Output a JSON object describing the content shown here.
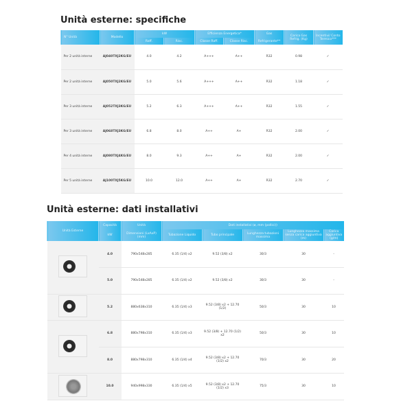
{
  "table1": {
    "title": "Unità esterne: specifiche",
    "headers": {
      "n_unita": "N° Unità",
      "modello": "Modello",
      "kw": "kW",
      "raff": "Raff.",
      "risc": "Risc.",
      "efficienza": "Efficienza Energetica*",
      "cons_raff": "Classe Raff.",
      "cons_risc": "Classe Risc.",
      "gas": "Gas",
      "refrigerante": "Refrigerante**",
      "carica": "Carica Gas Refrig. (Kg)",
      "incentivi": "Incentivi/ Conto Termico***"
    },
    "rows": [
      [
        "Per 2 unità interne",
        "AJ040TXJ2KG/EU",
        "4.0",
        "4.2",
        "A+++",
        "A++",
        "R32",
        "0.98",
        "✓"
      ],
      [
        "Per 2 unità interne",
        "AJ050TXJ2KG/EU",
        "5.0",
        "5.6",
        "A+++",
        "A++",
        "R32",
        "1.18",
        "✓"
      ],
      [
        "Per 3 unità interne",
        "AJ052TXJ3KG/EU",
        "5.2",
        "6.3",
        "A+++",
        "A++",
        "R32",
        "1.55",
        "✓"
      ],
      [
        "Per 3 unità interne",
        "AJ068TXJ3KG/EU",
        "6.8",
        "8.0",
        "A++",
        "A+",
        "R32",
        "2.00",
        "✓"
      ],
      [
        "Per 4 unità interne",
        "AJ080TXJ4KG/EU",
        "8.0",
        "9.3",
        "A++",
        "A+",
        "R32",
        "2.00",
        "✓"
      ],
      [
        "Per 5 unità interne",
        "AJ100TXJ5KG/EU",
        "10.0",
        "12.0",
        "A++",
        "A+",
        "R32",
        "2.70",
        "✓"
      ]
    ]
  },
  "table2": {
    "title": "Unità esterne: dati installativi",
    "headers": {
      "unita_esterne": "Unità Esterne",
      "capacita": "Capacità",
      "kw": "kW",
      "unita": "Unità",
      "dimensioni": "Dimensioni (LxAxP) (mm)",
      "dati": "Dati installativi (ø, mm (pollici))",
      "liquido": "Tubazione Liquido",
      "tubo": "Tubo principale",
      "lunghezza": "Lunghezza tubazioni massima",
      "lunghezza_senza": "Lunghezza massima senza carica aggiuntiva (m)",
      "carica": "Carica aggiuntiva (g/m)"
    },
    "rows": [
      [
        "4.0",
        "790x548x285",
        "6.35 (1/4) x2",
        "9.52 (3/8) x2",
        "30/3",
        "30",
        "-"
      ],
      [
        "5.0",
        "790x548x285",
        "6.35 (1/4) x2",
        "9.52 (3/8) x2",
        "30/3",
        "30",
        "-"
      ],
      [
        "5.2",
        "880x638x310",
        "6.35 (1/4) x3",
        "9.52 (3/8) x2 + 12.70 (1/2)",
        "50/3",
        "30",
        "10"
      ],
      [
        "6.8",
        "880x798x310",
        "6.35 (1/4) x3",
        "9.52 (3/8) + 12.70 (1/2) x2",
        "50/3",
        "30",
        "10"
      ],
      [
        "8.0",
        "880x798x310",
        "6.35 (1/4) x4",
        "9.52 (3/8) x2 + 12.70 (1/2) x2",
        "70/3",
        "30",
        "20"
      ],
      [
        "10.0",
        "940x998x330",
        "6.35 (1/4) x5",
        "9.52 (3/8) x2 + 12.70 (1/2) x3",
        "75/3",
        "30",
        "10"
      ]
    ]
  }
}
